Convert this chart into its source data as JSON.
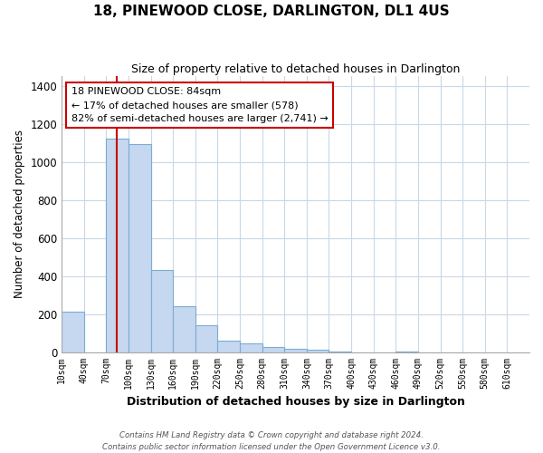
{
  "title": "18, PINEWOOD CLOSE, DARLINGTON, DL1 4US",
  "subtitle": "Size of property relative to detached houses in Darlington",
  "xlabel": "Distribution of detached houses by size in Darlington",
  "ylabel": "Number of detached properties",
  "bar_color": "#c5d8f0",
  "bar_edge_color": "#7aadd4",
  "vline_color": "#cc0000",
  "vline_x": 84,
  "bins_left": [
    10,
    40,
    70,
    100,
    130,
    160,
    190,
    220,
    250,
    280,
    310,
    340,
    370,
    400,
    430,
    460,
    490,
    520,
    550,
    580
  ],
  "bin_width": 30,
  "bar_heights": [
    210,
    0,
    1120,
    1095,
    430,
    240,
    140,
    60,
    45,
    25,
    15,
    10,
    5,
    0,
    0,
    5,
    0,
    0,
    0,
    0
  ],
  "xtick_labels": [
    "10sqm",
    "40sqm",
    "70sqm",
    "100sqm",
    "130sqm",
    "160sqm",
    "190sqm",
    "220sqm",
    "250sqm",
    "280sqm",
    "310sqm",
    "340sqm",
    "370sqm",
    "400sqm",
    "430sqm",
    "460sqm",
    "490sqm",
    "520sqm",
    "550sqm",
    "580sqm",
    "610sqm"
  ],
  "ylim": [
    0,
    1450
  ],
  "yticks": [
    0,
    200,
    400,
    600,
    800,
    1000,
    1200,
    1400
  ],
  "annotation_title": "18 PINEWOOD CLOSE: 84sqm",
  "annotation_line1": "← 17% of detached houses are smaller (578)",
  "annotation_line2": "82% of semi-detached houses are larger (2,741) →",
  "footnote1": "Contains HM Land Registry data © Crown copyright and database right 2024.",
  "footnote2": "Contains public sector information licensed under the Open Government Licence v3.0.",
  "background_color": "#ffffff",
  "grid_color": "#c8d8e8"
}
